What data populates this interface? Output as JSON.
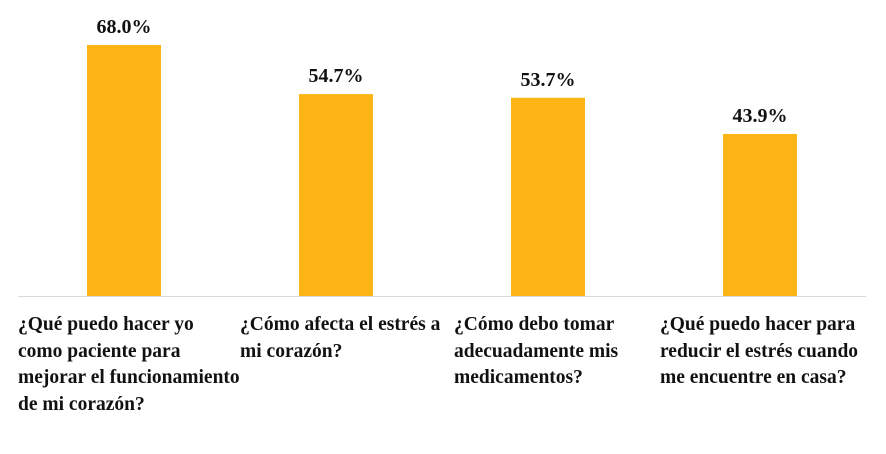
{
  "chart_data": {
    "type": "bar",
    "categories": [
      "¿Qué puedo hacer yo como paciente para mejorar el funcionamiento de mi corazón?",
      "¿Cómo afecta el estrés a mi corazón?",
      "¿Cómo debo tomar adecuadamente mis medicamentos?",
      "¿Qué puedo hacer para reducir el estrés cuando me encuentre en casa?"
    ],
    "values": [
      68.0,
      54.7,
      53.7,
      43.9
    ],
    "data_labels": [
      "68.0%",
      "54.7%",
      "53.7%",
      "43.9%"
    ],
    "unit": "%",
    "ylim": [
      0,
      80
    ],
    "grid": false,
    "legend": "none",
    "colors": {
      "bar": "#FDB515",
      "axis": "#D9D9D9",
      "text": "#111111"
    }
  }
}
